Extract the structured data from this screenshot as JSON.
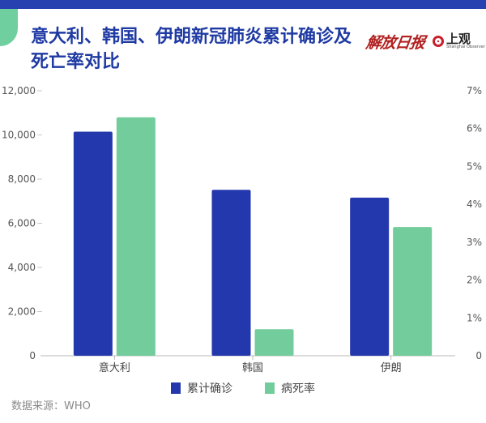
{
  "title": "意大利、韩国、伊朗新冠肺炎累计确诊及死亡率对比",
  "logos": {
    "left": "解放日报",
    "right_cn": "上观",
    "right_en": "Shanghai Observer"
  },
  "source": "数据来源：WHO",
  "colors": {
    "accent": "#2741b0",
    "confirmed": "#2438ad",
    "fatality": "#72cc9c"
  },
  "chart_data": {
    "type": "bar",
    "categories": [
      "意大利",
      "韩国",
      "伊朗"
    ],
    "series": [
      {
        "name": "累计确诊",
        "axis": "left",
        "values": [
          10149,
          7513,
          7161
        ]
      },
      {
        "name": "病死率",
        "axis": "right",
        "values": [
          6.3,
          0.7,
          3.4
        ]
      }
    ],
    "left_axis": {
      "ylim": [
        0,
        12000
      ],
      "ticks": [
        "0",
        "2,000",
        "4,000",
        "6,000",
        "8,000",
        "10,000",
        "12,000"
      ]
    },
    "right_axis": {
      "ylim": [
        0,
        7
      ],
      "ticks": [
        "0",
        "1%",
        "2%",
        "3%",
        "4%",
        "5%",
        "6%",
        "7%"
      ]
    },
    "legend_placement": "bottom-center",
    "grid": false
  }
}
